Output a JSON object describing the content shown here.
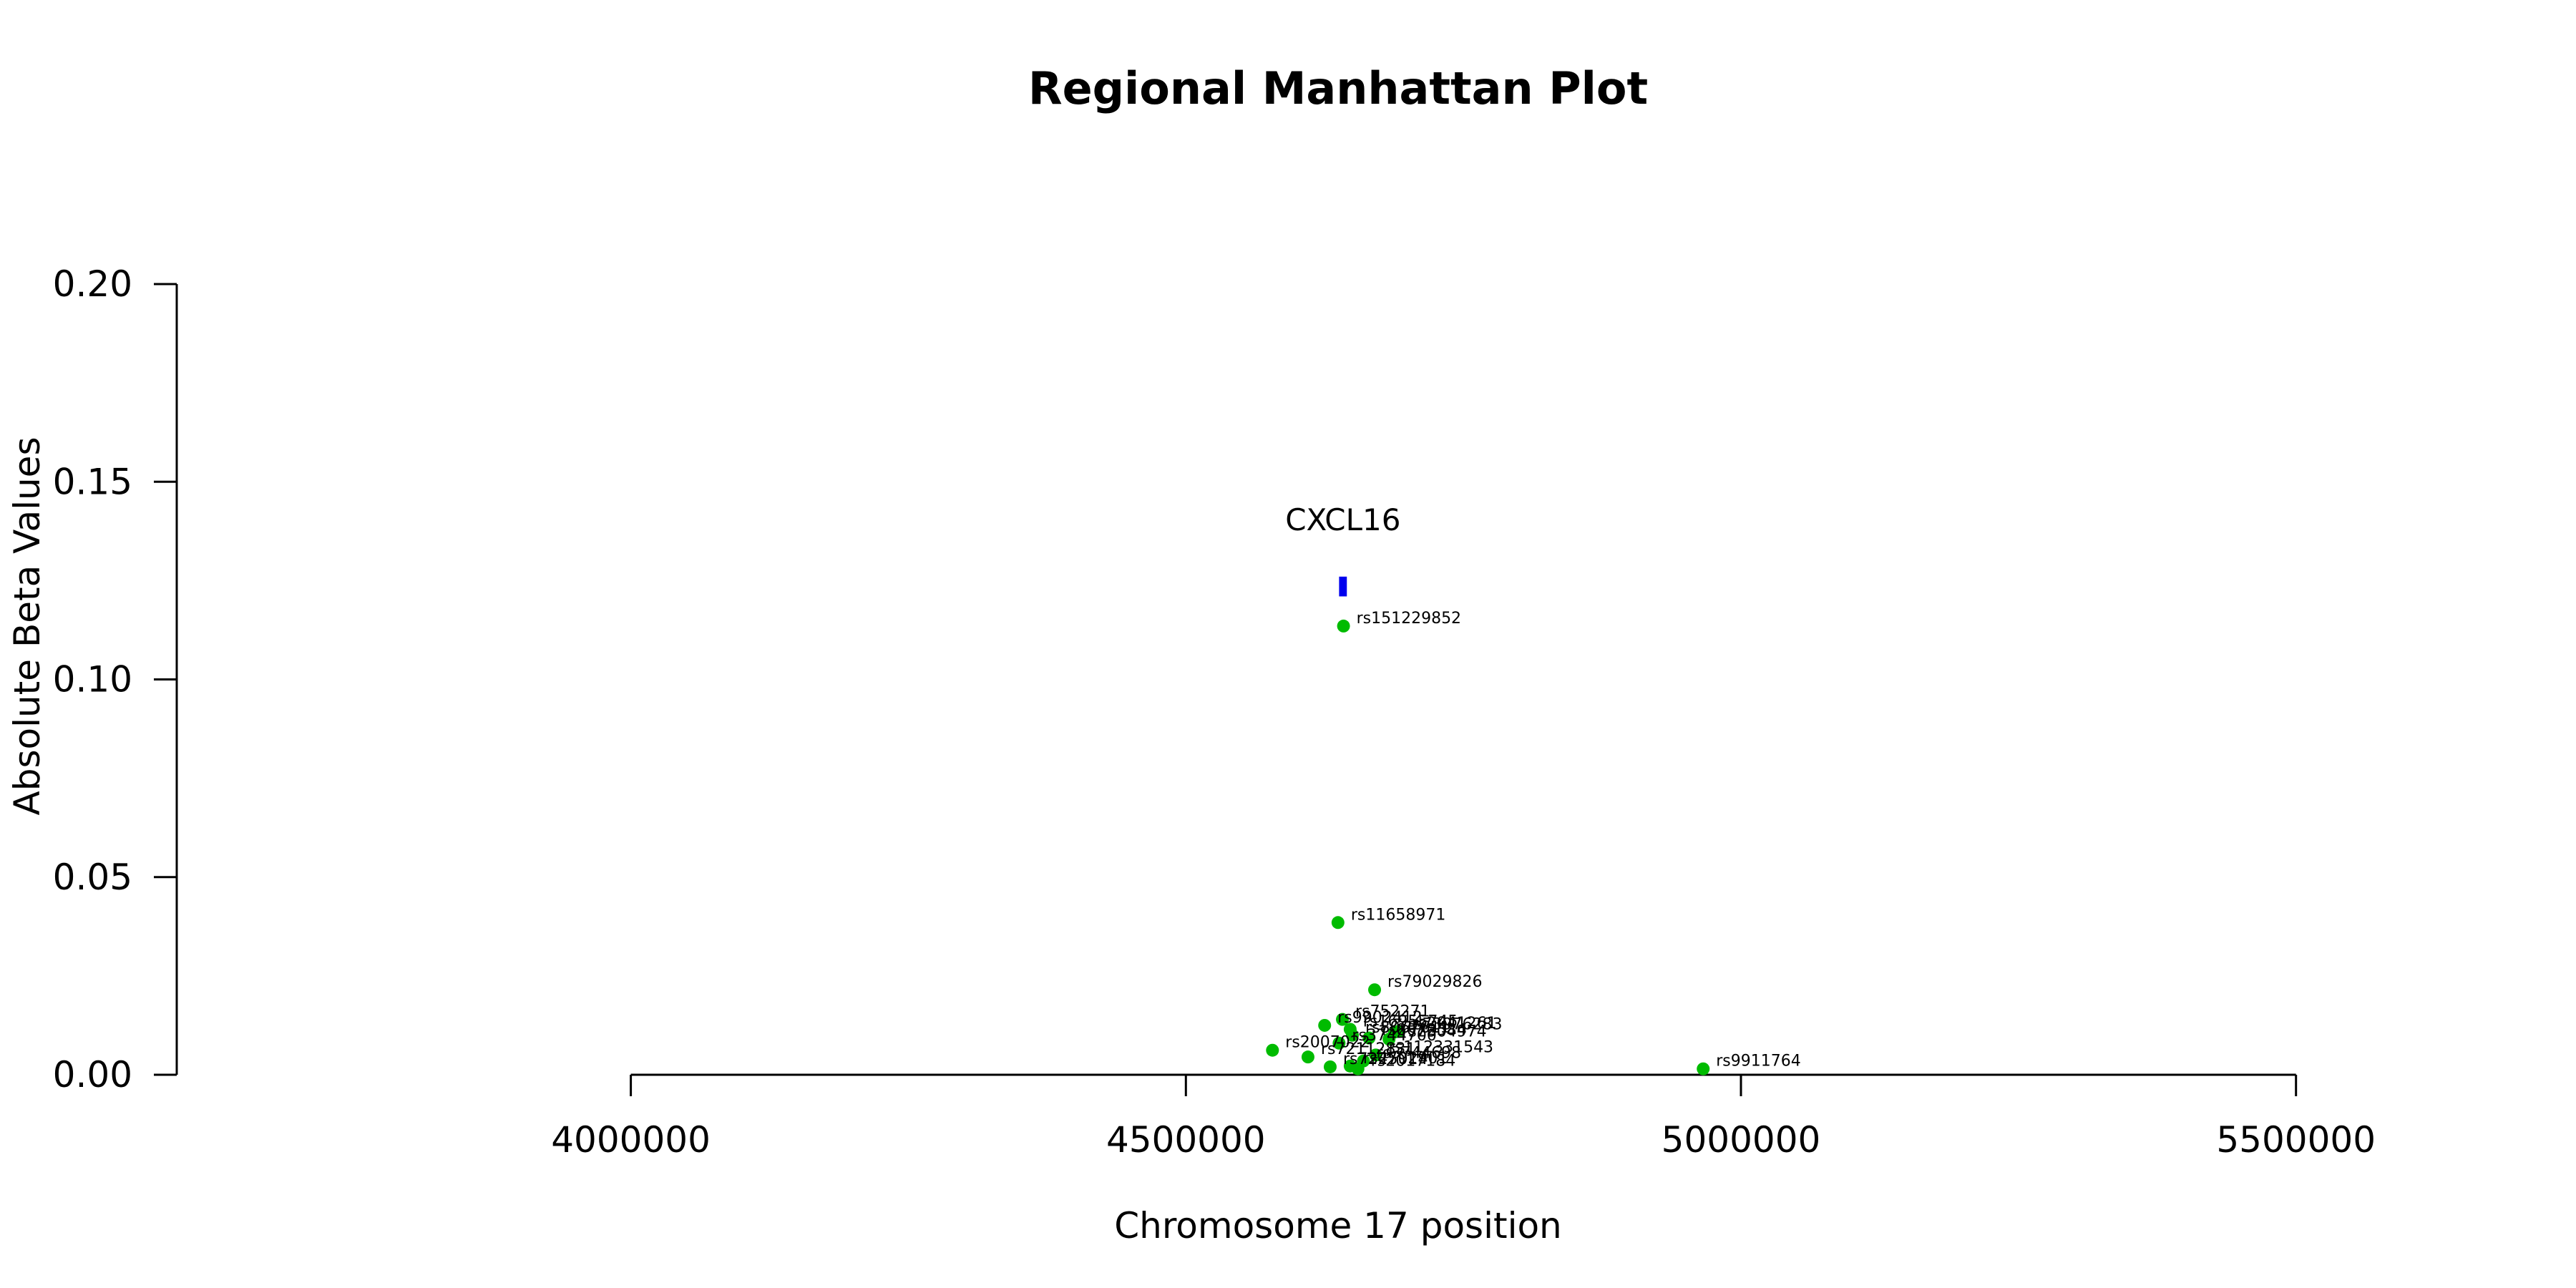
{
  "chart_data": {
    "type": "scatter",
    "title": "Regional Manhattan Plot",
    "xlabel": "Chromosome 17 position",
    "ylabel": "Absolute Beta Values",
    "xlim": [
      3580000,
      5720000
    ],
    "ylim": [
      0,
      0.2
    ],
    "x_ticks": [
      {
        "value": 4000000,
        "label": "4000000"
      },
      {
        "value": 4500000,
        "label": "4500000"
      },
      {
        "value": 5000000,
        "label": "5000000"
      },
      {
        "value": 5500000,
        "label": "5500000"
      }
    ],
    "y_ticks": [
      {
        "value": 0.0,
        "label": "0.00"
      },
      {
        "value": 0.05,
        "label": "0.05"
      },
      {
        "value": 0.1,
        "label": "0.10"
      },
      {
        "value": 0.15,
        "label": "0.15"
      },
      {
        "value": 0.2,
        "label": "0.20"
      }
    ],
    "gene": {
      "name": "CXCL16",
      "start": 4638000,
      "end": 4645000,
      "y_low": 0.121,
      "y_high": 0.126,
      "color": "#0000ee"
    },
    "point_color": "#00bb00",
    "points": [
      {
        "snp": "rs151229852",
        "x": 4642000,
        "y": 0.1135
      },
      {
        "snp": "rs11658971",
        "x": 4637000,
        "y": 0.0385
      },
      {
        "snp": "rs79029826",
        "x": 4670000,
        "y": 0.0215
      },
      {
        "snp": "rs752271",
        "x": 4641000,
        "y": 0.014
      },
      {
        "snp": "rs9902412",
        "x": 4625000,
        "y": 0.0125
      },
      {
        "snp": "rs16955745",
        "x": 4648000,
        "y": 0.0115
      },
      {
        "snp": "rs2041261",
        "x": 4692000,
        "y": 0.011
      },
      {
        "snp": "rs73976283",
        "x": 4688000,
        "y": 0.0108
      },
      {
        "snp": "rs8067611",
        "x": 4650000,
        "y": 0.01
      },
      {
        "snp": "rs8072584",
        "x": 4665000,
        "y": 0.0093
      },
      {
        "snp": "rs2304974",
        "x": 4683000,
        "y": 0.009
      },
      {
        "snp": "rs2007022",
        "x": 4578000,
        "y": 0.0062
      },
      {
        "snp": "rs3744700",
        "x": 4638000,
        "y": 0.008
      },
      {
        "snp": "rs72112831",
        "x": 4610000,
        "y": 0.0045
      },
      {
        "snp": "rs112331543",
        "x": 4671000,
        "y": 0.005
      },
      {
        "snp": "rs3744698",
        "x": 4660000,
        "y": 0.0035
      },
      {
        "snp": "rs4792901",
        "x": 4648000,
        "y": 0.0022
      },
      {
        "snp": "rs2017184",
        "x": 4655000,
        "y": 0.0015
      },
      {
        "snp": "rs7225014",
        "x": 4630000,
        "y": 0.002
      },
      {
        "snp": "rs9911764",
        "x": 4966000,
        "y": 0.0015
      }
    ]
  }
}
